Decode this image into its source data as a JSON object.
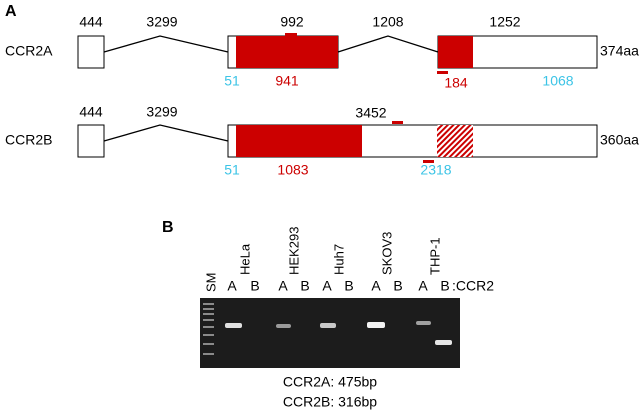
{
  "panel_a": {
    "label": "A",
    "ccr2a": {
      "name": "CCR2A",
      "length": "374aa",
      "above": [
        "444",
        "3299",
        "992",
        "1208",
        "1252"
      ],
      "below": [
        "51",
        "941",
        "184",
        "1068"
      ]
    },
    "ccr2b": {
      "name": "CCR2B",
      "length": "360aa",
      "above": [
        "444",
        "3299",
        "3452"
      ],
      "below": [
        "51",
        "1083",
        "2318"
      ]
    }
  },
  "panel_b": {
    "label": "B",
    "marker": "SM",
    "cell_lines": [
      "HeLa",
      "HEK293",
      "Huh7",
      "SKOV3",
      "THP-1"
    ],
    "isoforms": [
      "A",
      "B"
    ],
    "isoform_suffix": ":CCR2",
    "notes": [
      "CCR2A: 475bp",
      "CCR2B: 316bp"
    ]
  }
}
